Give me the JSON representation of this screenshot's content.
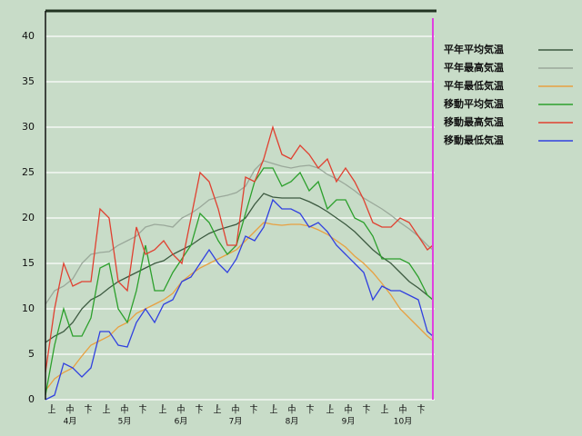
{
  "chart_data": {
    "type": "line",
    "x": [
      0,
      5,
      10,
      15,
      20,
      25,
      30,
      35,
      40,
      45,
      50,
      55,
      60,
      65,
      70,
      75,
      80,
      85,
      90,
      95,
      100,
      105,
      110,
      115,
      120,
      125,
      130,
      135,
      140,
      145,
      150,
      155,
      160,
      165,
      170,
      175,
      180,
      185,
      190,
      195,
      200,
      205,
      210,
      213
    ],
    "xlim": [
      0,
      214
    ],
    "ylim": [
      0,
      42.8
    ],
    "yticks": [
      0,
      5,
      10,
      15,
      20,
      25,
      30,
      35,
      40
    ],
    "xticks": [
      {
        "value": 3.5,
        "label": "上"
      },
      {
        "value": 13.5,
        "label": "中"
      },
      {
        "value": 23.5,
        "label": "下"
      },
      {
        "value": 33.5,
        "label": "上"
      },
      {
        "value": 43.5,
        "label": "中"
      },
      {
        "value": 53.5,
        "label": "下"
      },
      {
        "value": 64.5,
        "label": "上"
      },
      {
        "value": 74.5,
        "label": "中"
      },
      {
        "value": 84.5,
        "label": "下"
      },
      {
        "value": 94.5,
        "label": "上"
      },
      {
        "value": 104.5,
        "label": "中"
      },
      {
        "value": 114.5,
        "label": "下"
      },
      {
        "value": 125.5,
        "label": "上"
      },
      {
        "value": 135.5,
        "label": "中"
      },
      {
        "value": 145.5,
        "label": "下"
      },
      {
        "value": 156.5,
        "label": "上"
      },
      {
        "value": 166.5,
        "label": "中"
      },
      {
        "value": 176.5,
        "label": "下"
      },
      {
        "value": 186.5,
        "label": "上"
      },
      {
        "value": 196.5,
        "label": "中"
      },
      {
        "value": 206.5,
        "label": "下"
      }
    ],
    "month_labels": [
      {
        "value": 13.5,
        "label": "4月"
      },
      {
        "value": 43.5,
        "label": "5月"
      },
      {
        "value": 74.5,
        "label": "6月"
      },
      {
        "value": 104.5,
        "label": "7月"
      },
      {
        "value": 135.5,
        "label": "8月"
      },
      {
        "value": 166.5,
        "label": "9月"
      },
      {
        "value": 196.5,
        "label": "10月"
      }
    ],
    "grid": true,
    "legend": "top-right",
    "series": [
      {
        "name": "平年平均気温",
        "color": "#3c5a40",
        "values": [
          6.3,
          7,
          7.5,
          8.5,
          10,
          11,
          11.5,
          12.3,
          13,
          13.5,
          14,
          14.5,
          15,
          15.3,
          16,
          16.5,
          17,
          17.7,
          18.3,
          18.7,
          19,
          19.3,
          20,
          21.5,
          22.7,
          22.3,
          22.2,
          22.2,
          22.2,
          21.8,
          21.3,
          20.7,
          20,
          19.3,
          18.5,
          17.5,
          16.5,
          15.7,
          15,
          14,
          13,
          12.3,
          11.5,
          11
        ]
      },
      {
        "name": "平年最高気温",
        "color": "#9aa89a",
        "values": [
          10.5,
          12,
          12.5,
          13.3,
          15,
          16,
          16.2,
          16.3,
          17,
          17.5,
          18,
          19,
          19.3,
          19.2,
          19,
          20,
          20.5,
          21.2,
          22,
          22.3,
          22.5,
          22.8,
          23.5,
          25.3,
          26.3,
          26,
          25.7,
          25.5,
          25.7,
          25.8,
          25.5,
          24.8,
          24.3,
          23.7,
          23,
          22.2,
          21.6,
          21,
          20.3,
          19.5,
          18.8,
          18,
          17,
          16.5
        ]
      },
      {
        "name": "平年最低気温",
        "color": "#e8a040",
        "values": [
          1,
          2.3,
          3,
          3.5,
          4.8,
          6,
          6.5,
          7,
          8,
          8.5,
          9.5,
          10,
          10.5,
          11,
          11.7,
          13,
          13.8,
          14.5,
          15,
          15.5,
          16,
          16.5,
          17.5,
          18.5,
          19.5,
          19.3,
          19.2,
          19.3,
          19.3,
          19.1,
          18.7,
          18.2,
          17.5,
          16.8,
          15.8,
          15,
          14,
          12.8,
          11.5,
          10,
          9,
          8,
          7,
          6.5
        ]
      },
      {
        "name": "移動平均気温",
        "color": "#2ca02c",
        "values": [
          0.5,
          6,
          10,
          7,
          7,
          9,
          14.5,
          15,
          10,
          8.5,
          12,
          17,
          12,
          12,
          14,
          15.5,
          17,
          20.5,
          19.5,
          17.5,
          16,
          17,
          20.5,
          24,
          25.5,
          25.5,
          23.5,
          24,
          25,
          23,
          24,
          21,
          22,
          22,
          20,
          19.5,
          18,
          15.5,
          15.5,
          15.5,
          15,
          13.5,
          11.5,
          11
        ]
      },
      {
        "name": "移動最高気温",
        "color": "#e04030",
        "values": [
          3,
          10,
          15,
          12.5,
          13,
          13,
          21,
          20,
          13,
          12,
          19,
          16,
          16.5,
          17.5,
          16,
          15,
          20,
          25,
          24,
          21,
          17,
          17,
          24.5,
          24,
          26.5,
          30,
          27,
          26.5,
          28,
          27,
          25.5,
          26.5,
          24,
          25.5,
          24,
          22,
          19.5,
          19,
          19,
          20,
          19.5,
          18,
          16.5,
          17
        ]
      },
      {
        "name": "移動最低気温",
        "color": "#3040e0",
        "values": [
          0,
          0.5,
          4,
          3.5,
          2.5,
          3.5,
          7.5,
          7.5,
          6,
          5.8,
          8.5,
          10,
          8.5,
          10.5,
          11,
          13,
          13.5,
          15,
          16.5,
          15,
          14,
          15.5,
          18,
          17.5,
          19,
          22,
          21,
          21,
          20.5,
          19,
          19.5,
          18.5,
          17,
          16,
          15,
          14,
          11,
          12.5,
          12,
          12,
          11.5,
          11,
          7.5,
          7
        ]
      }
    ]
  }
}
